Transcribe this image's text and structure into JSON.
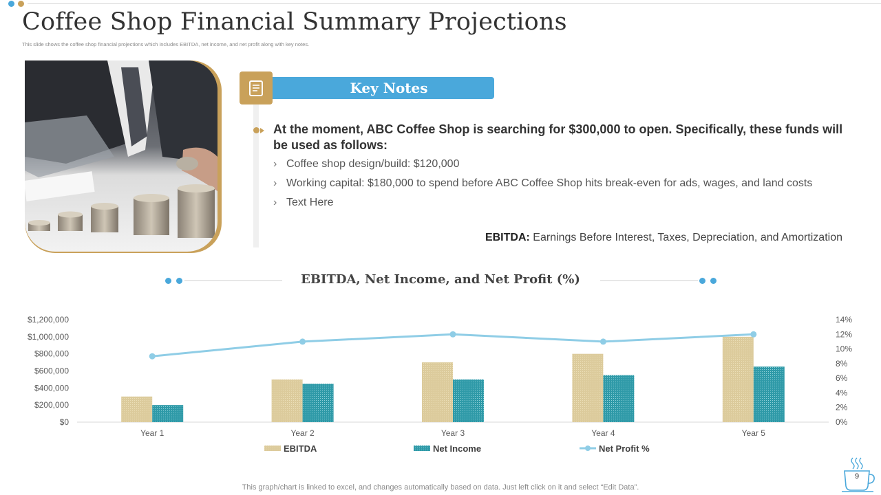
{
  "slide": {
    "title": "Coffee Shop Financial Summary Projections",
    "subtitle": "This slide shows the coffee shop financial projections which includes EBITDA, net income, and net profit along with key notes.",
    "page_number": "9",
    "footer_note": "This graph/chart is linked to excel,  and changes automatically based on data. Just left click on it and select “Edit Data”."
  },
  "key_notes": {
    "heading": "Key Notes",
    "main_point": "At the moment, ABC Coffee Shop is searching for $300,000 to open. Specifically, these funds will be used as follows:",
    "items": [
      "Coffee shop design/build: $120,000",
      "Working capital: $180,000 to spend before ABC Coffee Shop hits break-even for ads, wages, and land costs",
      "Text Here"
    ],
    "definition_term": "EBITDA:",
    "definition_text": " Earnings Before Interest,  Taxes,  Depreciation, and Amortization"
  },
  "colors": {
    "accent_gold": "#c9a15a",
    "accent_blue": "#4aa8db",
    "ebitda_bar": "#dccb9c",
    "net_income_bar": "#2f9aa8",
    "net_profit_line": "#8fcde6"
  },
  "chart_data": {
    "type": "bar",
    "title": "EBITDA, Net Income, and Net Profit (%)",
    "categories": [
      "Year 1",
      "Year 2",
      "Year 3",
      "Year 4",
      "Year 5"
    ],
    "series": [
      {
        "name": "EBITDA",
        "type": "bar",
        "axis": "left",
        "values": [
          300000,
          500000,
          700000,
          800000,
          1000000
        ]
      },
      {
        "name": "Net Income",
        "type": "bar",
        "axis": "left",
        "values": [
          200000,
          450000,
          500000,
          550000,
          650000
        ]
      },
      {
        "name": "Net Profit %",
        "type": "line",
        "axis": "right",
        "values": [
          9,
          11,
          12,
          11,
          12
        ]
      }
    ],
    "left_axis": {
      "min": 0,
      "max": 1200000,
      "step": 200000,
      "tick_labels": [
        "$0",
        "$200,000",
        "$400,000",
        "$600,000",
        "$800,000",
        "$1,000,000",
        "$1,200,000"
      ]
    },
    "right_axis": {
      "min": 0,
      "max": 14,
      "step": 2,
      "tick_labels": [
        "0%",
        "2%",
        "4%",
        "6%",
        "8%",
        "10%",
        "12%",
        "14%"
      ]
    },
    "grid": false,
    "legend": "bottom"
  }
}
